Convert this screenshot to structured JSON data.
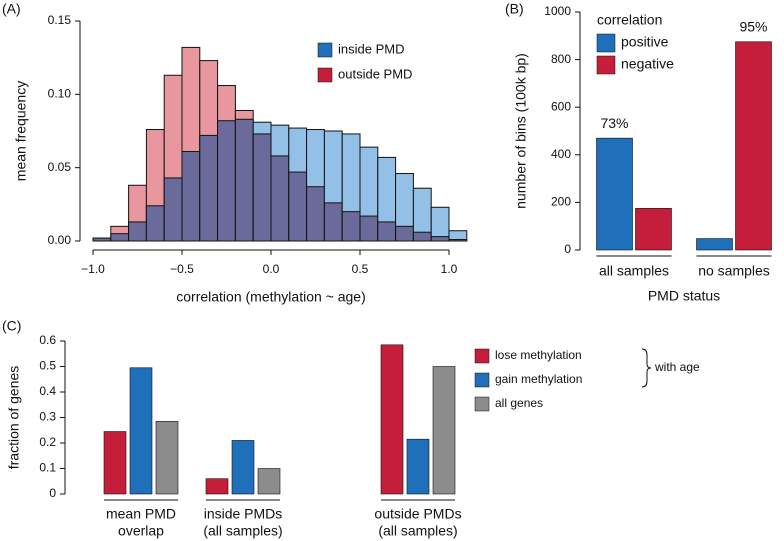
{
  "chart_data": [
    {
      "type": "histogram",
      "panel": "(A)",
      "xlabel": "correlation (methylation ~ age)",
      "ylabel": "mean frequency",
      "bins": [
        -1.0,
        -0.9,
        -0.8,
        -0.7,
        -0.6,
        -0.5,
        -0.4,
        -0.3,
        -0.2,
        -0.1,
        0.0,
        0.1,
        0.2,
        0.3,
        0.4,
        0.5,
        0.6,
        0.7,
        0.8,
        0.9,
        1.0,
        1.1
      ],
      "series": [
        {
          "name": "inside PMD",
          "color": "#1f6fba",
          "fill": "#93c0e6",
          "values": [
            0.002,
            0.005,
            0.013,
            0.024,
            0.043,
            0.061,
            0.072,
            0.082,
            0.083,
            0.081,
            0.079,
            0.077,
            0.076,
            0.075,
            0.073,
            0.064,
            0.057,
            0.046,
            0.036,
            0.023,
            0.007
          ]
        },
        {
          "name": "outside PMD",
          "color": "#c41e3a",
          "fill": "#e8979f",
          "values": [
            0.002,
            0.01,
            0.038,
            0.076,
            0.113,
            0.132,
            0.123,
            0.106,
            0.089,
            0.073,
            0.058,
            0.047,
            0.037,
            0.026,
            0.02,
            0.017,
            0.013,
            0.01,
            0.006,
            0.003,
            0.001
          ]
        }
      ],
      "overlap_color": "#6b6b9b",
      "xlim": [
        -1.0,
        1.0
      ],
      "xticks": [
        {
          "value": -1.0,
          "label": "−1.0"
        },
        {
          "value": -0.5,
          "label": "−0.5"
        },
        {
          "value": 0.0,
          "label": "0.0"
        },
        {
          "value": 0.5,
          "label": "0.5"
        },
        {
          "value": 1.0,
          "label": "1.0"
        }
      ],
      "ylim": [
        0,
        0.15
      ],
      "yticks": [
        {
          "value": 0,
          "label": "0.00"
        },
        {
          "value": 0.05,
          "label": "0.05"
        },
        {
          "value": 0.1,
          "label": "0.10"
        },
        {
          "value": 0.15,
          "label": "0.15"
        }
      ]
    },
    {
      "type": "bar",
      "panel": "(B)",
      "xlabel": "PMD status",
      "ylabel": "number of bins (100k bp)",
      "legend_title": "correlation",
      "categories": [
        [
          "all samples"
        ],
        [
          "no samples"
        ]
      ],
      "series": [
        {
          "name": "positive",
          "color": "#1f6fba",
          "values": [
            470,
            48
          ]
        },
        {
          "name": "negative",
          "color": "#c41e3a",
          "values": [
            175,
            875
          ]
        }
      ],
      "annotations": [
        "73%",
        "95%"
      ],
      "ylim": [
        0,
        1000
      ],
      "yticks": [
        0,
        200,
        400,
        600,
        800,
        1000
      ]
    },
    {
      "type": "bar",
      "panel": "(C)",
      "ylabel": "fraction of genes",
      "legend_note": "with age",
      "categories": [
        [
          "mean PMD",
          "overlap"
        ],
        [
          "inside PMDs",
          "(all samples)"
        ],
        [
          "outside PMDs",
          "(all samples)"
        ]
      ],
      "series": [
        {
          "name": "lose methylation",
          "color": "#c41e3a",
          "values": [
            0.245,
            0.06,
            0.585
          ]
        },
        {
          "name": "gain methylation",
          "color": "#1f6fba",
          "values": [
            0.495,
            0.21,
            0.215
          ]
        },
        {
          "name": "all genes",
          "color": "#8c8c8c",
          "values": [
            0.285,
            0.1,
            0.5
          ]
        }
      ],
      "ylim": [
        0,
        0.6
      ],
      "yticks": [
        0,
        0.1,
        0.2,
        0.3,
        0.4,
        0.5,
        0.6
      ]
    }
  ]
}
